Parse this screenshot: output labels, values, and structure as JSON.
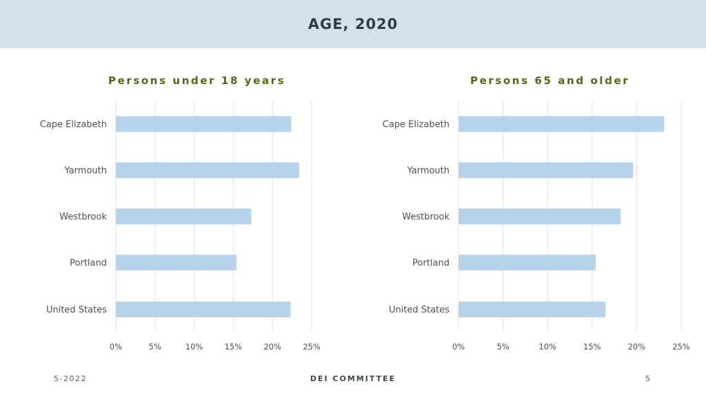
{
  "header": {
    "title": "AGE, 2020"
  },
  "footer": {
    "date": "5-2022",
    "center": "DEI COMMITTEE",
    "page": "5"
  },
  "colors": {
    "header_bg": "#d5e1e8",
    "bar": "#b7d3ea",
    "title_green": "#4f6a16"
  },
  "chart_data": [
    {
      "type": "bar",
      "orientation": "horizontal",
      "title": "Persons under 18 years",
      "categories": [
        "Cape Elizabeth",
        "Yarmouth",
        "Westbrook",
        "Portland",
        "United States"
      ],
      "values": [
        22.4,
        23.4,
        17.3,
        15.4,
        22.3
      ],
      "xlim": [
        0,
        25
      ],
      "xticks": [
        "0%",
        "5%",
        "10%",
        "15%",
        "20%",
        "25%"
      ],
      "grid": true,
      "legend": "none"
    },
    {
      "type": "bar",
      "orientation": "horizontal",
      "title": "Persons 65 and older",
      "categories": [
        "Cape Elizabeth",
        "Yarmouth",
        "Westbrook",
        "Portland",
        "United States"
      ],
      "values": [
        23.1,
        19.6,
        18.2,
        15.4,
        16.5
      ],
      "xlim": [
        0,
        25
      ],
      "xticks": [
        "0%",
        "5%",
        "10%",
        "15%",
        "20%",
        "25%"
      ],
      "grid": true,
      "legend": "none"
    }
  ]
}
